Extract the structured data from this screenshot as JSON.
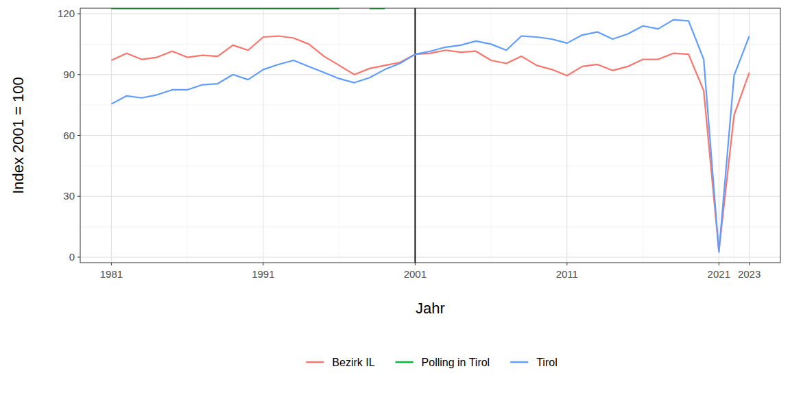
{
  "chart_data": {
    "type": "line",
    "x_label": "Jahr",
    "y_label": "Index 2001 = 100",
    "x": [
      1981,
      1982,
      1983,
      1984,
      1985,
      1986,
      1987,
      1988,
      1989,
      1990,
      1991,
      1992,
      1993,
      1994,
      1995,
      1996,
      1997,
      1998,
      1999,
      2000,
      2001,
      2002,
      2003,
      2004,
      2005,
      2006,
      2007,
      2008,
      2009,
      2010,
      2011,
      2012,
      2013,
      2014,
      2015,
      2016,
      2017,
      2018,
      2019,
      2020,
      2021,
      2022,
      2023
    ],
    "series": [
      {
        "name": "Bezirk IL",
        "color": "#F8766D",
        "values": [
          97,
          100.5,
          97.5,
          98.5,
          101.5,
          98.5,
          99.5,
          99,
          104.5,
          102,
          108.5,
          109,
          108,
          105,
          99,
          94.5,
          90,
          93,
          94.5,
          96,
          100,
          100.5,
          102,
          101,
          101.5,
          97,
          95.5,
          99,
          94.5,
          92.5,
          89.5,
          94,
          95,
          92,
          94,
          97.5,
          97.5,
          100.5,
          100,
          82,
          3,
          70,
          91
        ]
      },
      {
        "name": "Polling in Tirol",
        "color": "#00BA38",
        "values": [
          122.6,
          122.6,
          122.6,
          122.6,
          122.6,
          122.6,
          122.6,
          122.6,
          122.6,
          122.6,
          122.6,
          122.6,
          122.6,
          122.6,
          122.6,
          122.6,
          null,
          122.6,
          122.6,
          null,
          null,
          null,
          null,
          null,
          null,
          null,
          null,
          null,
          null,
          null,
          null,
          null,
          null,
          null,
          null,
          null,
          null,
          null,
          null,
          null,
          null,
          null,
          null
        ]
      },
      {
        "name": "Tirol",
        "color": "#619CFF",
        "values": [
          75.5,
          79.5,
          78.5,
          80,
          82.5,
          82.5,
          85,
          85.5,
          90,
          87.5,
          92.5,
          95,
          97,
          94,
          91,
          88,
          86,
          88.5,
          92.5,
          95.5,
          100,
          101.5,
          103.5,
          104.5,
          106.5,
          105,
          102,
          109,
          108.5,
          107.5,
          105.5,
          109.5,
          111,
          107.5,
          110,
          114,
          112.5,
          117,
          116.5,
          97.5,
          2.5,
          89.5,
          109
        ]
      }
    ],
    "reference_x": 2001,
    "xlim": [
      1978.95,
      2025.05
    ],
    "ylim": [
      -2.7,
      122.7
    ],
    "xticks": [
      1981,
      1991,
      2001,
      2011,
      2021,
      2023
    ],
    "yticks": [
      0,
      30,
      60,
      90,
      120
    ],
    "grid": true,
    "legend": "bottom"
  }
}
